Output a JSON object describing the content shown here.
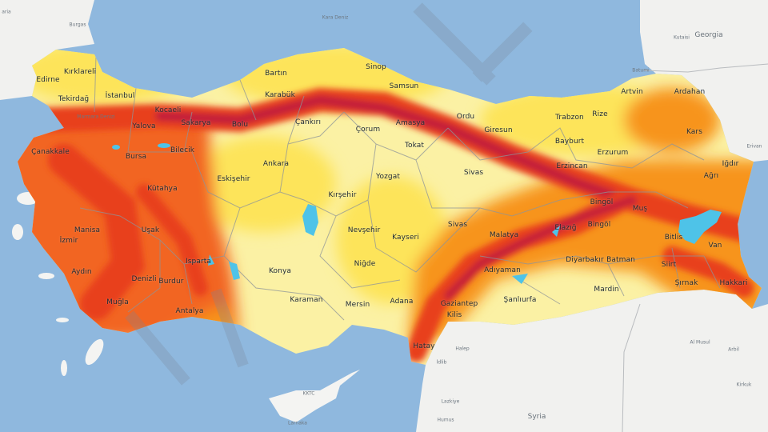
{
  "colors": {
    "sea": "#8fb8de",
    "land": "#f1f1ef",
    "low_hazard": "#fbf1a4",
    "moderate_hazard": "#fde45a",
    "high_hazard": "#f7941d",
    "very_high_hazard": "#e8401c",
    "highest_hazard": "#c21f3a",
    "lakes": "#4ec3e8"
  },
  "provinces": [
    "Edirne",
    "Kırklareli",
    "Tekirdağ",
    "İstanbul",
    "Kocaeli",
    "Yalova",
    "Sakarya",
    "Bolu",
    "Bartın",
    "Karabük",
    "Çankırı",
    "Sinop",
    "Samsun",
    "Çorum",
    "Amasya",
    "Tokat",
    "Ordu",
    "Giresun",
    "Trabzon",
    "Rize",
    "Artvin",
    "Ardahan",
    "Kars",
    "Bayburt",
    "Erzurum",
    "Iğdır",
    "Ağrı",
    "Erzincan",
    "Sivas",
    "Yozgat",
    "Ankara",
    "Eskişehir",
    "Bilecik",
    "Bursa",
    "Çanakkale",
    "Kütahya",
    "Kırşehir",
    "Nevşehir",
    "Kayseri",
    "Sivas",
    "Malatya",
    "Elazığ",
    "Bingöl",
    "Bingöl",
    "Muş",
    "Bitlis",
    "Van",
    "Diyarbakır",
    "Batman",
    "Siirt",
    "Şırnak",
    "Hakkari",
    "Mardin",
    "Şanlıurfa",
    "Adıyaman",
    "Gaziantep",
    "Kilis",
    "Hatay",
    "Adana",
    "Mersin",
    "Karaman",
    "Niğde",
    "Konya",
    "Antalya",
    "Burdur",
    "Isparta",
    "Denizli",
    "Muğla",
    "Aydın",
    "İzmir",
    "Manisa",
    "Uşak"
  ],
  "seas": {
    "black_sea": "Kara Deniz",
    "marmara": "Marmara Denizi"
  },
  "countries": {
    "georgia": "Georgia",
    "syria": "Syria"
  },
  "minor_places": [
    "Burgas",
    "Kutaisi",
    "Batumi",
    "Erivan",
    "Halep",
    "İdlib",
    "Al Musul",
    "Arbil",
    "Kirkuk",
    "KKTC",
    "Larnaka",
    "Lazkiye",
    "Humus",
    "aria"
  ]
}
